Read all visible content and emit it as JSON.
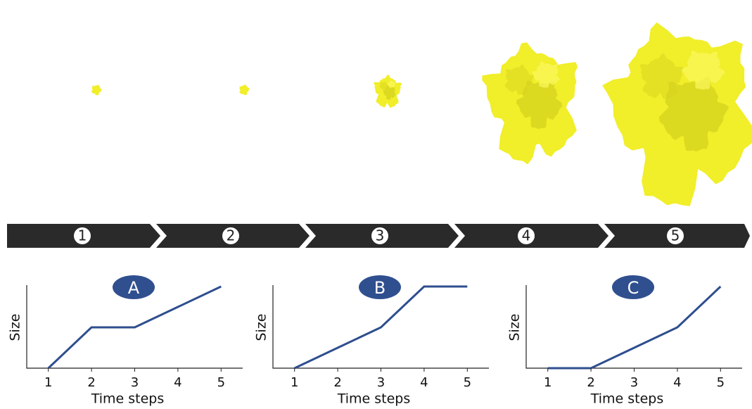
{
  "timeline": {
    "steps": [
      "1",
      "2",
      "3",
      "4",
      "5"
    ]
  },
  "chart_data": [
    {
      "type": "line",
      "title": "A",
      "x": [
        1,
        2,
        3,
        4,
        5
      ],
      "values": [
        0,
        1,
        1,
        1.5,
        2
      ],
      "color": "#2e4e8e",
      "xlabel": "Time steps",
      "ylabel": "Size",
      "xlim": [
        0.5,
        5.5
      ],
      "xticks": [
        1,
        2,
        3,
        4,
        5
      ],
      "ylim": [
        0,
        2
      ]
    },
    {
      "type": "line",
      "title": "B",
      "x": [
        1,
        2,
        3,
        4,
        5
      ],
      "values": [
        0,
        0.5,
        1,
        2,
        2
      ],
      "color": "#2e4e8e",
      "xlabel": "Time steps",
      "ylabel": "Size",
      "xlim": [
        0.5,
        5.5
      ],
      "xticks": [
        1,
        2,
        3,
        4,
        5
      ],
      "ylim": [
        0,
        2
      ]
    },
    {
      "type": "line",
      "title": "C",
      "x": [
        1,
        2,
        3,
        4,
        5
      ],
      "values": [
        0,
        0,
        0.5,
        1,
        2
      ],
      "color": "#2e4e8e",
      "xlabel": "Time steps",
      "ylabel": "Size",
      "xlim": [
        0.5,
        5.5
      ],
      "xticks": [
        1,
        2,
        3,
        4,
        5
      ],
      "ylim": [
        0,
        2
      ]
    }
  ]
}
